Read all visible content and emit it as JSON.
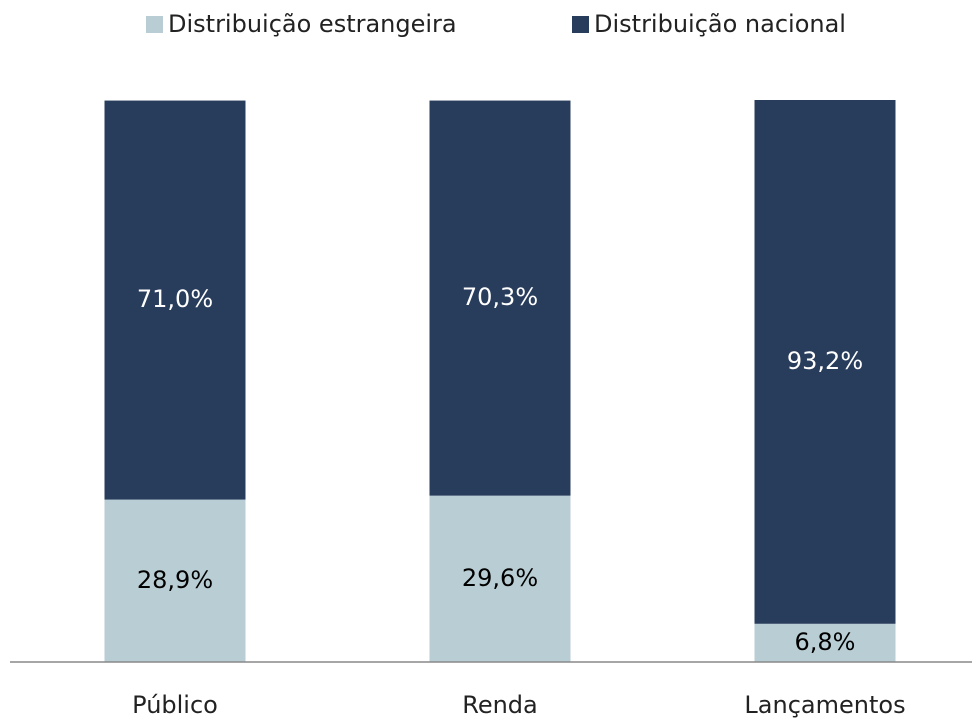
{
  "chart_data": {
    "type": "stacked_bar",
    "categories": [
      "Público",
      "Renda",
      "Lançamentos"
    ],
    "series": [
      {
        "name": "Distribuição estrangeira",
        "color": "#b9ced4",
        "label_color": "#000000",
        "values": [
          28.9,
          29.6,
          6.8
        ],
        "value_labels": [
          "28,9%",
          "29,6%",
          "6,8%"
        ]
      },
      {
        "name": "Distribuição nacional",
        "color": "#283c5c",
        "label_color": "#ffffff",
        "values": [
          71.0,
          70.3,
          93.2
        ],
        "value_labels": [
          "71,0%",
          "70,3%",
          "93,2%"
        ]
      }
    ],
    "ylim": [
      0,
      100
    ],
    "legend": "top"
  }
}
